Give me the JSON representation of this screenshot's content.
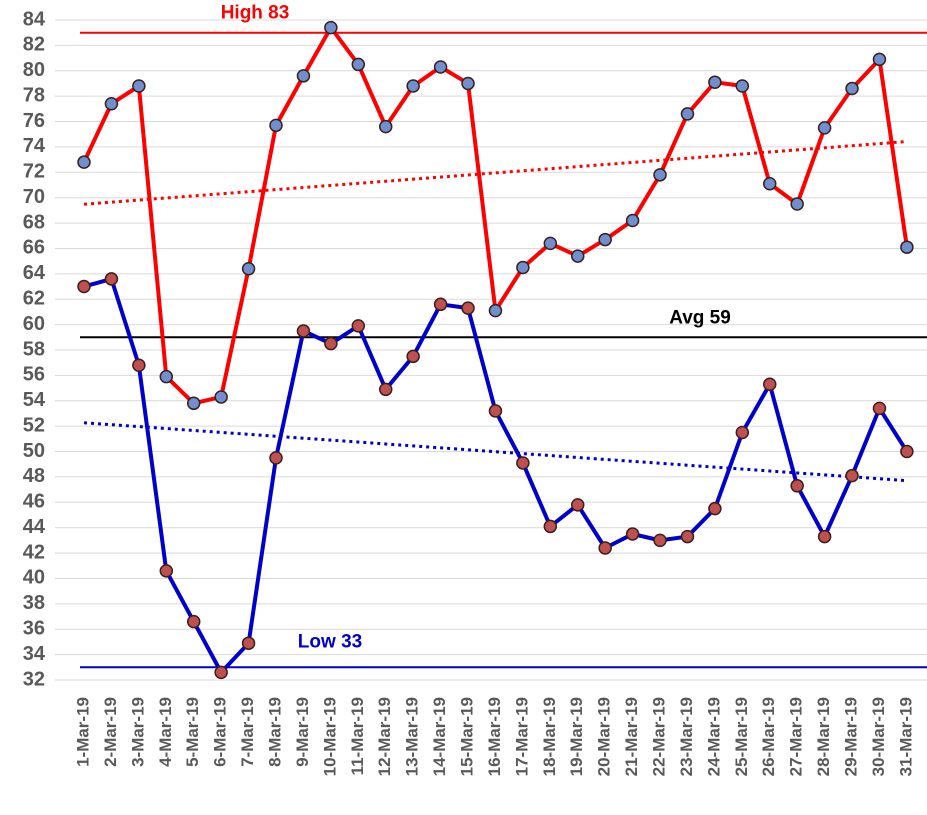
{
  "chart_data": {
    "type": "line",
    "categories": [
      "1-Mar-19",
      "2-Mar-19",
      "3-Mar-19",
      "4-Mar-19",
      "5-Mar-19",
      "6-Mar-19",
      "7-Mar-19",
      "8-Mar-19",
      "9-Mar-19",
      "10-Mar-19",
      "11-Mar-19",
      "12-Mar-19",
      "13-Mar-19",
      "14-Mar-19",
      "15-Mar-19",
      "16-Mar-19",
      "17-Mar-19",
      "18-Mar-19",
      "19-Mar-19",
      "20-Mar-19",
      "21-Mar-19",
      "22-Mar-19",
      "23-Mar-19",
      "24-Mar-19",
      "25-Mar-19",
      "26-Mar-19",
      "27-Mar-19",
      "28-Mar-19",
      "29-Mar-19",
      "30-Mar-19",
      "31-Mar-19"
    ],
    "series": [
      {
        "color": "#ff0000",
        "marker_color": "#6f8fcf",
        "values": [
          72.8,
          77.4,
          78.8,
          55.9,
          53.8,
          54.3,
          64.4,
          75.7,
          79.6,
          83.4,
          80.5,
          75.6,
          78.8,
          80.3,
          79.0,
          61.1,
          64.5,
          66.4,
          65.4,
          66.7,
          68.2,
          71.8,
          76.6,
          79.1,
          78.8,
          71.1,
          69.5,
          75.5,
          78.6,
          80.9,
          66.1
        ]
      },
      {
        "color": "#0000cc",
        "marker_color": "#c0504d",
        "values": [
          63.0,
          63.6,
          56.8,
          40.6,
          36.6,
          32.6,
          34.9,
          49.5,
          59.5,
          58.5,
          59.9,
          54.9,
          57.5,
          61.6,
          61.3,
          53.2,
          49.1,
          44.1,
          45.8,
          42.4,
          43.5,
          43.0,
          43.3,
          45.5,
          51.5,
          55.3,
          47.3,
          43.3,
          48.1,
          53.4,
          50.0
        ]
      }
    ],
    "reference_lines": [
      {
        "label": "High 83",
        "value": 83,
        "color": "#ff0000"
      },
      {
        "label": "Avg 59",
        "value": 59,
        "color": "#000000"
      },
      {
        "label": "Low 33",
        "value": 33,
        "color": "#0000cc"
      }
    ],
    "trendline": true,
    "ylim": [
      32,
      84
    ],
    "yticks": [
      32,
      34,
      36,
      38,
      40,
      42,
      44,
      46,
      48,
      50,
      52,
      54,
      56,
      58,
      60,
      62,
      64,
      66,
      68,
      70,
      72,
      74,
      76,
      78,
      80,
      82,
      84
    ],
    "grid": true
  }
}
